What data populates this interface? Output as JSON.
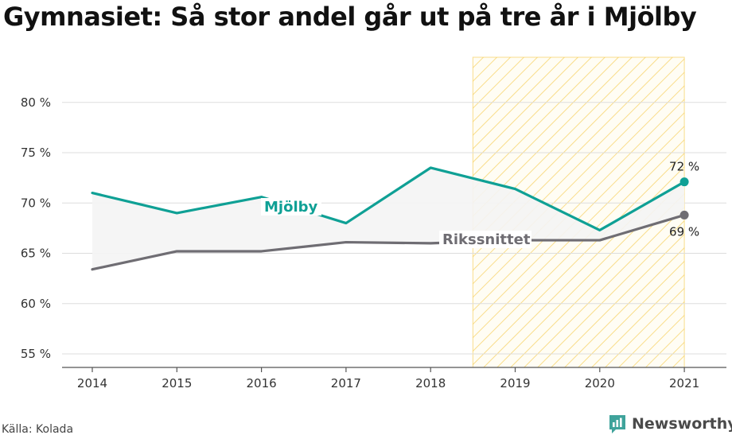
{
  "title": "Gymnasiet: Så stor andel går ut på tre år i Mjölby",
  "source": "Källa: Kolada",
  "brand": "Newsworthy",
  "colors": {
    "mjolby": "#0fa095",
    "riks": "#6f6d73",
    "band": "#f4f4f4",
    "highlight": "#f5c842",
    "grid": "#dddddd"
  },
  "chart_data": {
    "type": "line",
    "x": [
      "2014",
      "2015",
      "2016",
      "2017",
      "2018",
      "2019",
      "2020",
      "2021"
    ],
    "ylim": [
      54,
      85
    ],
    "yticks": [
      55,
      60,
      65,
      70,
      75,
      80
    ],
    "ytick_labels": [
      "55 %",
      "60 %",
      "65 %",
      "70 %",
      "75 %",
      "80 %"
    ],
    "series": [
      {
        "name": "Mjölby",
        "values": [
          71.0,
          69.0,
          70.6,
          68.0,
          73.5,
          71.4,
          67.3,
          72.1
        ],
        "end_label": "72 %"
      },
      {
        "name": "Rikssnittet",
        "values": [
          63.4,
          65.2,
          65.2,
          66.1,
          66.0,
          66.3,
          66.3,
          68.8
        ],
        "end_label": "69 %"
      }
    ],
    "highlight_range": [
      "2019",
      "2021"
    ],
    "grid": true
  }
}
